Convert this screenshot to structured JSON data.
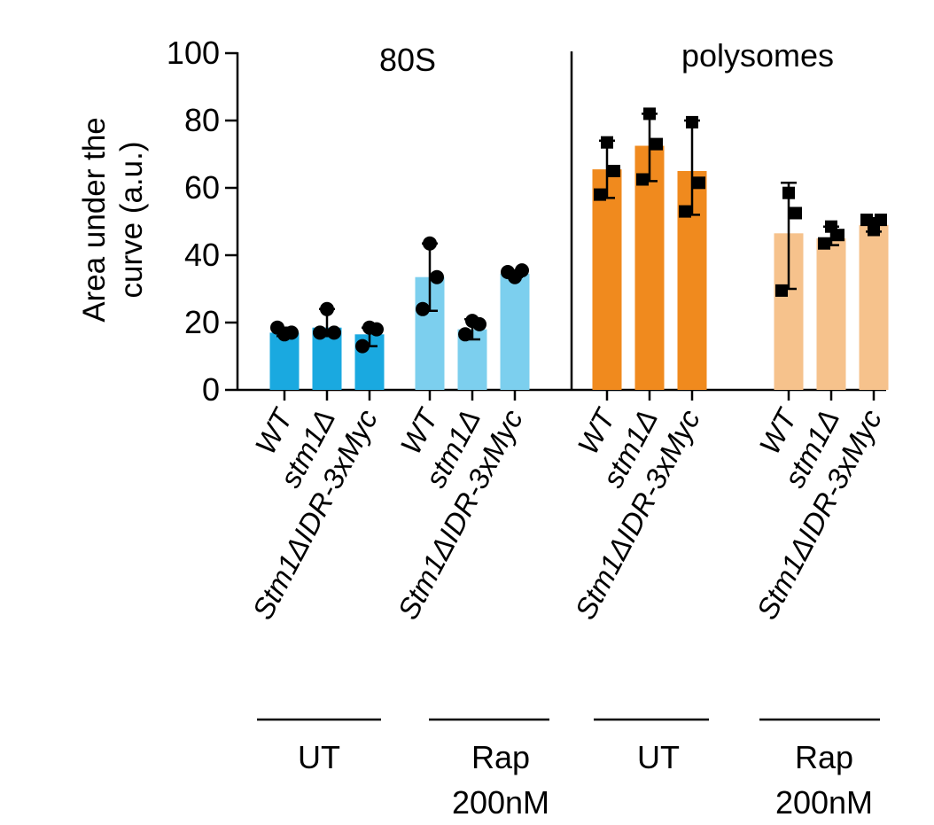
{
  "chart_data": {
    "type": "bar",
    "y_axis": {
      "label_line1": "Area under the",
      "label_line2": "curve (a.u.)",
      "ylim": [
        0,
        100
      ],
      "ticks": [
        "0",
        "20",
        "40",
        "60",
        "80",
        "100"
      ]
    },
    "panels": [
      {
        "title": "80S",
        "groups": [
          {
            "label": "UT",
            "color": "#1aa9e0",
            "marker": "circle",
            "bars": [
              {
                "category": "WT",
                "value": 17,
                "err_low": 16,
                "err_high": 18.5,
                "points": [
                  16.5,
                  18.5,
                  17
                ]
              },
              {
                "category": "stm1Δ",
                "value": 18.5,
                "err_low": 16,
                "err_high": 24,
                "points": [
                  24,
                  17,
                  17
                ]
              },
              {
                "category": "Stm1ΔIDR-3xMyc",
                "value": 16.5,
                "err_low": 13,
                "err_high": 18.5,
                "points": [
                  18.5,
                  13,
                  18
                ]
              }
            ]
          },
          {
            "label_line1": "Rap",
            "label_line2": "200nM",
            "color": "#7ccfee",
            "marker": "circle",
            "bars": [
              {
                "category": "WT",
                "value": 33.5,
                "err_low": 23.5,
                "err_high": 43.5,
                "points": [
                  43.5,
                  24,
                  33.5
                ]
              },
              {
                "category": "stm1Δ",
                "value": 18,
                "err_low": 15,
                "err_high": 21,
                "points": [
                  20.5,
                  16.5,
                  19.5
                ]
              },
              {
                "category": "Stm1ΔIDR-3xMyc",
                "value": 34.5,
                "err_low": 33.5,
                "err_high": 35.5,
                "points": [
                  33.5,
                  35,
                  35.5
                ]
              }
            ]
          }
        ]
      },
      {
        "title": "polysomes",
        "groups": [
          {
            "label": "UT",
            "color": "#f08a1e",
            "marker": "square",
            "bars": [
              {
                "category": "WT",
                "value": 65.5,
                "err_low": 57,
                "err_high": 74,
                "points": [
                  73.5,
                  58,
                  65
                ]
              },
              {
                "category": "stm1Δ",
                "value": 72.5,
                "err_low": 62,
                "err_high": 82,
                "points": [
                  82,
                  62.5,
                  73
                ]
              },
              {
                "category": "Stm1ΔIDR-3xMyc",
                "value": 65,
                "err_low": 52,
                "err_high": 80,
                "points": [
                  79.5,
                  53,
                  61.5
                ]
              }
            ]
          },
          {
            "label_line1": "Rap",
            "label_line2": "200nM",
            "color": "#f6c28c",
            "marker": "square",
            "bars": [
              {
                "category": "WT",
                "value": 46.5,
                "err_low": 30,
                "err_high": 61.5,
                "points": [
                  58.5,
                  29.5,
                  52.5
                ]
              },
              {
                "category": "stm1Δ",
                "value": 45,
                "err_low": 43,
                "err_high": 48.5,
                "points": [
                  48.5,
                  43.5,
                  46
                ]
              },
              {
                "category": "Stm1ΔIDR-3xMyc",
                "value": 49,
                "err_low": 47,
                "err_high": 51,
                "points": [
                  47.5,
                  50.5,
                  50.5
                ]
              }
            ]
          }
        ]
      }
    ]
  }
}
